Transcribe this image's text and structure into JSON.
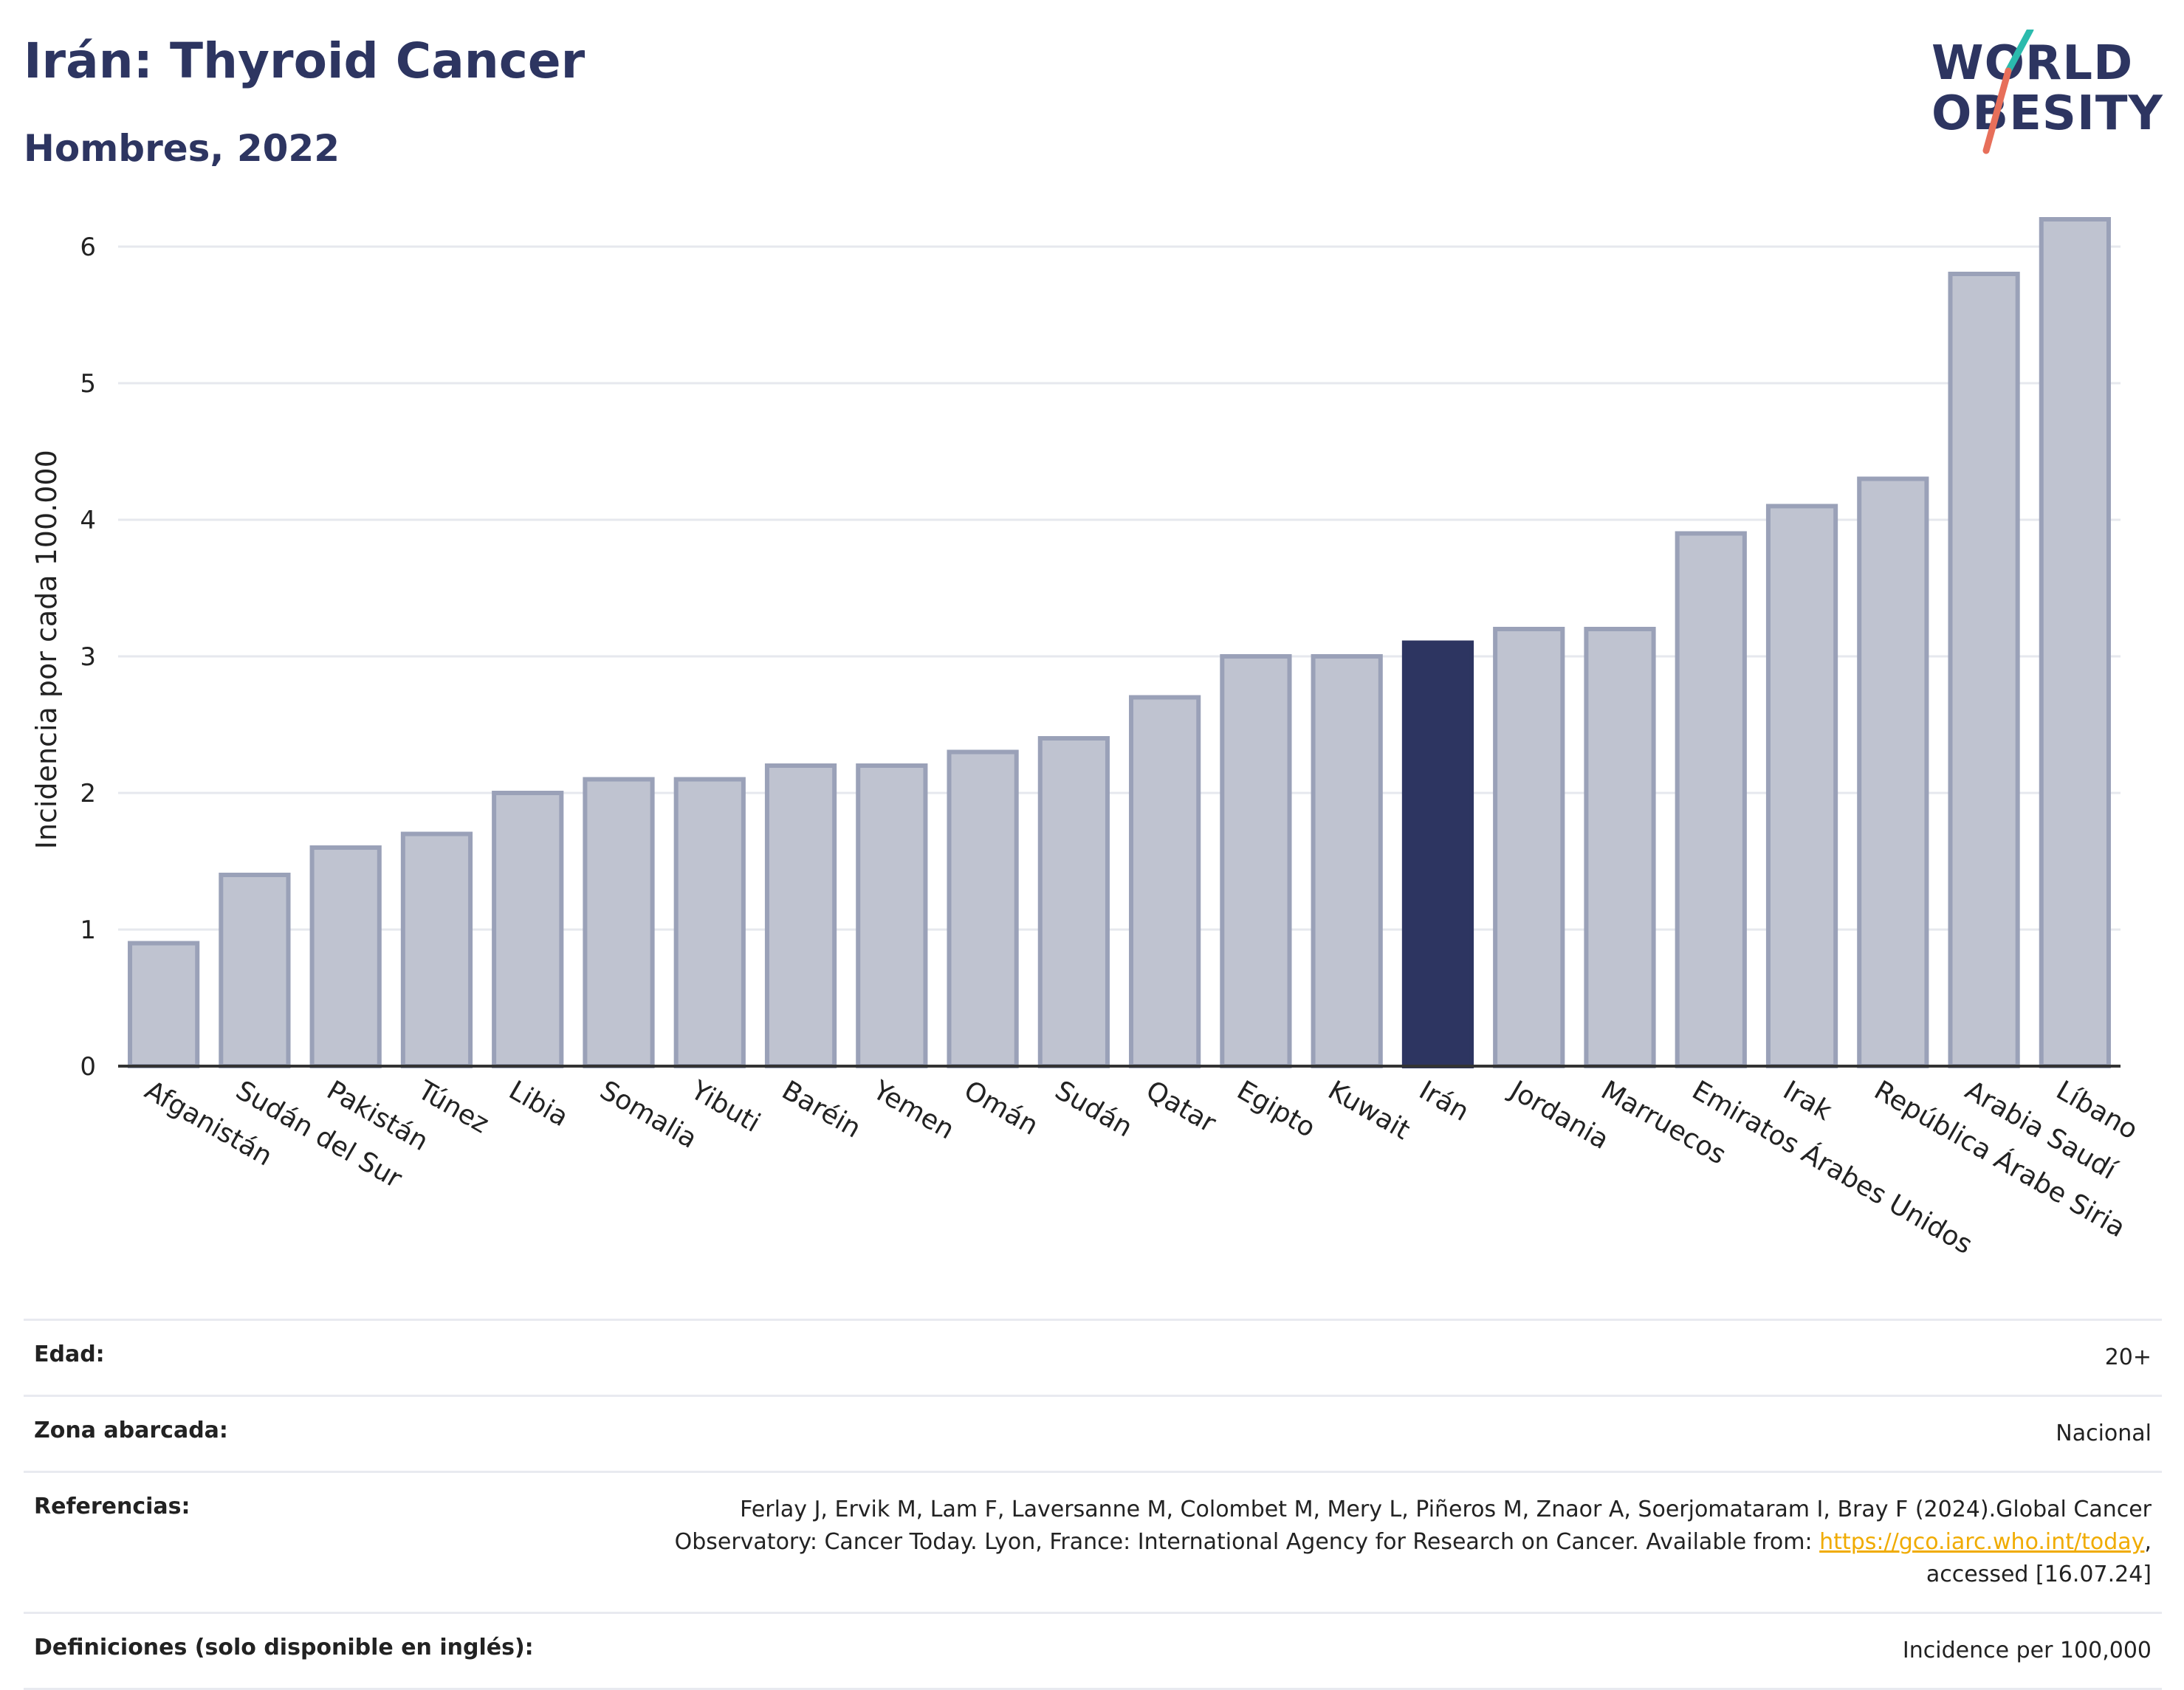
{
  "header": {
    "title": "Irán: Thyroid Cancer",
    "subtitle": "Hombres, 2022"
  },
  "logo": {
    "line1": "WORLD",
    "line2": "OBESITY",
    "slash_colors": [
      "#2bbbad",
      "#e76f5a"
    ]
  },
  "colors": {
    "bar": "#bfc3d0",
    "bar_border": "#9aa1b8",
    "highlight": "#2d3561",
    "grid": "#e6e8ee",
    "axis": "#333333",
    "text_dark": "#2d3561",
    "link": "#f0ab00"
  },
  "chart_data": {
    "type": "bar",
    "title": "Irán: Thyroid Cancer",
    "subtitle": "Hombres, 2022",
    "xlabel": "",
    "ylabel": "Incidencia por cada 100.000",
    "ylim": [
      0,
      6.4
    ],
    "yticks": [
      0,
      1,
      2,
      3,
      4,
      5,
      6
    ],
    "grid": true,
    "categories": [
      "Afganistán",
      "Sudán del Sur",
      "Pakistán",
      "Túnez",
      "Libia",
      "Somalia",
      "Yibuti",
      "Baréin",
      "Yemen",
      "Omán",
      "Sudán",
      "Qatar",
      "Egipto",
      "Kuwait",
      "Irán",
      "Jordania",
      "Marruecos",
      "Emiratos Árabes Unidos",
      "Irak",
      "República Árabe Siria",
      "Arabia Saudí",
      "Líbano"
    ],
    "values": [
      0.9,
      1.4,
      1.6,
      1.7,
      2.0,
      2.1,
      2.1,
      2.2,
      2.2,
      2.3,
      2.4,
      2.7,
      3.0,
      3.0,
      3.1,
      3.2,
      3.2,
      3.9,
      4.1,
      4.3,
      5.8,
      6.2
    ],
    "highlight": "Irán"
  },
  "meta": {
    "rows": [
      {
        "label": "Edad:",
        "value": "20+"
      },
      {
        "label": "Zona abarcada:",
        "value": "Nacional"
      }
    ],
    "references": {
      "label": "Referencias:",
      "line1": "Ferlay J, Ervik M, Lam F, Laversanne M, Colombet M, Mery L, Piñeros M, Znaor A, Soerjomataram I, Bray F (2024).Global Cancer",
      "line2_pre": "Observatory: Cancer Today. Lyon, France: International Agency for Research on Cancer. Available from: ",
      "link": "https://gco.iarc.who.int/today",
      "line2_post": ",",
      "line3": "accessed [16.07.24]"
    },
    "definitions": {
      "label": "Definiciones (solo disponible en inglés):",
      "value": "Incidence per 100,000"
    }
  }
}
